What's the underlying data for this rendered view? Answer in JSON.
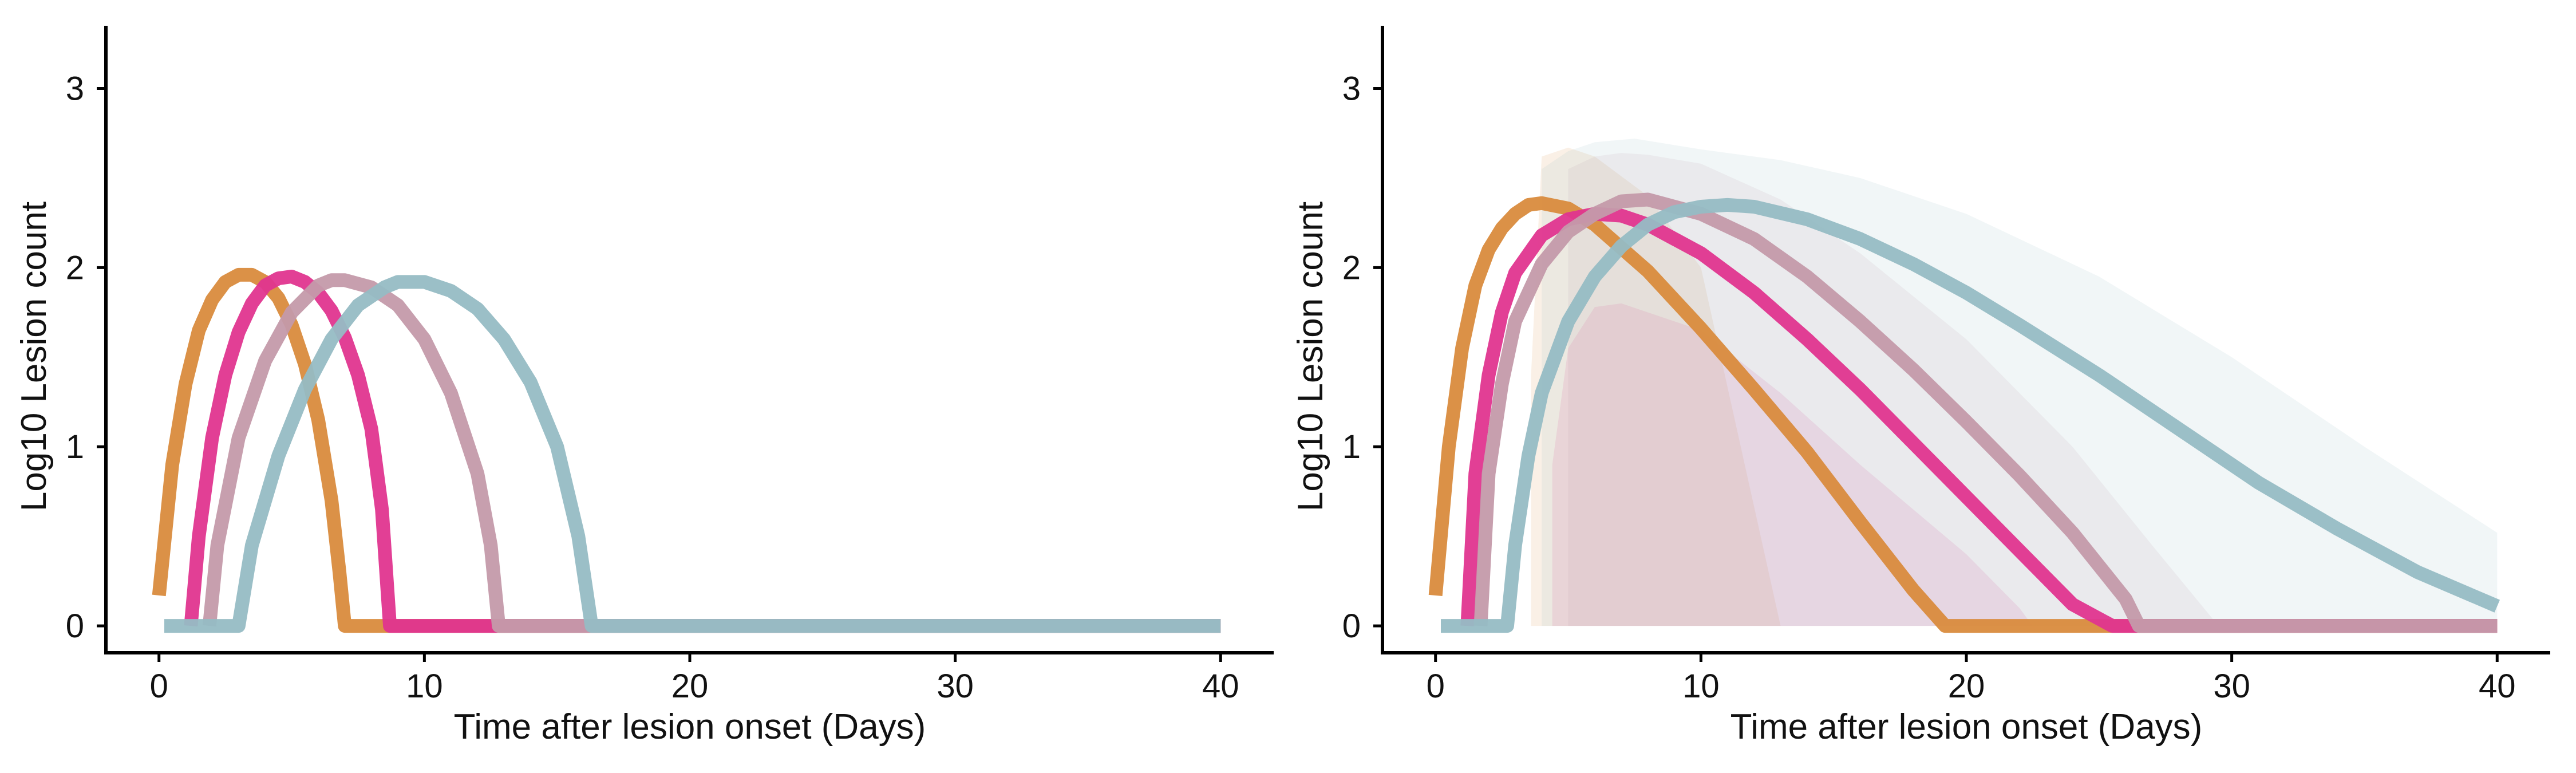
{
  "chart_data": [
    {
      "type": "line",
      "panel": "left",
      "xlabel": "Time after lesion onset (Days)",
      "ylabel": "Log10 Lesion count",
      "xlim": [
        -2,
        42
      ],
      "ylim": [
        -0.15,
        3.35
      ],
      "xticks": [
        "0",
        "10",
        "20",
        "30",
        "40"
      ],
      "yticks": [
        "0",
        "1",
        "2",
        "3"
      ],
      "legend": "none",
      "grid": false,
      "series": [
        {
          "color": "#D98B3D",
          "bands": [],
          "points": [
            [
              0,
              0.17
            ],
            [
              0.5,
              0.9
            ],
            [
              1,
              1.35
            ],
            [
              1.5,
              1.65
            ],
            [
              2,
              1.82
            ],
            [
              2.5,
              1.92
            ],
            [
              3,
              1.96
            ],
            [
              3.5,
              1.96
            ],
            [
              4,
              1.92
            ],
            [
              4.5,
              1.83
            ],
            [
              5,
              1.68
            ],
            [
              5.5,
              1.46
            ],
            [
              6,
              1.15
            ],
            [
              6.5,
              0.7
            ],
            [
              6.8,
              0.3
            ],
            [
              7,
              0
            ],
            [
              40,
              0
            ]
          ]
        },
        {
          "color": "#E0358F",
          "bands": [],
          "points": [
            [
              1.2,
              0
            ],
            [
              1.5,
              0.5
            ],
            [
              2,
              1.05
            ],
            [
              2.5,
              1.4
            ],
            [
              3,
              1.64
            ],
            [
              3.5,
              1.8
            ],
            [
              4,
              1.9
            ],
            [
              4.5,
              1.94
            ],
            [
              5,
              1.95
            ],
            [
              5.5,
              1.92
            ],
            [
              6,
              1.86
            ],
            [
              6.5,
              1.76
            ],
            [
              7,
              1.61
            ],
            [
              7.5,
              1.4
            ],
            [
              8,
              1.1
            ],
            [
              8.4,
              0.65
            ],
            [
              8.7,
              0
            ],
            [
              40,
              0
            ]
          ]
        },
        {
          "color": "#C49AAA",
          "bands": [],
          "points": [
            [
              1.9,
              0
            ],
            [
              2.2,
              0.45
            ],
            [
              3,
              1.05
            ],
            [
              4,
              1.48
            ],
            [
              5,
              1.75
            ],
            [
              6,
              1.9
            ],
            [
              6.5,
              1.93
            ],
            [
              7,
              1.93
            ],
            [
              8,
              1.89
            ],
            [
              9,
              1.79
            ],
            [
              10,
              1.6
            ],
            [
              11,
              1.3
            ],
            [
              12,
              0.85
            ],
            [
              12.5,
              0.45
            ],
            [
              12.8,
              0
            ],
            [
              40,
              0
            ]
          ]
        },
        {
          "color": "#96BCC4",
          "bands": [],
          "points": [
            [
              0.2,
              0
            ],
            [
              3,
              0
            ],
            [
              3.5,
              0.45
            ],
            [
              4.5,
              0.95
            ],
            [
              5.5,
              1.32
            ],
            [
              6.5,
              1.6
            ],
            [
              7.5,
              1.79
            ],
            [
              8.5,
              1.89
            ],
            [
              9,
              1.92
            ],
            [
              10,
              1.92
            ],
            [
              11,
              1.87
            ],
            [
              12,
              1.77
            ],
            [
              13,
              1.6
            ],
            [
              14,
              1.36
            ],
            [
              15,
              1.0
            ],
            [
              15.8,
              0.5
            ],
            [
              16.3,
              0
            ],
            [
              40,
              0
            ]
          ]
        }
      ]
    },
    {
      "type": "line",
      "panel": "right",
      "xlabel": "Time after lesion onset (Days)",
      "ylabel": "Log10 Lesion count",
      "xlim": [
        -2,
        42
      ],
      "ylim": [
        -0.15,
        3.35
      ],
      "xticks": [
        "0",
        "10",
        "20",
        "30",
        "40"
      ],
      "yticks": [
        "0",
        "1",
        "2",
        "3"
      ],
      "legend": "none",
      "grid": false,
      "series": [
        {
          "color": "#D98B3D",
          "bands": [
            {
              "x": [
                3.6,
                4,
                5,
                6,
                8,
                10,
                13
              ],
              "upper": [
                1.4,
                2.62,
                2.67,
                2.62,
                2.4,
                2.0,
                0
              ],
              "lower": [
                0,
                0,
                0,
                0,
                0,
                0,
                0
              ]
            }
          ],
          "points": [
            [
              0,
              0.17
            ],
            [
              0.5,
              1.0
            ],
            [
              1,
              1.55
            ],
            [
              1.5,
              1.9
            ],
            [
              2,
              2.1
            ],
            [
              2.5,
              2.22
            ],
            [
              3,
              2.3
            ],
            [
              3.5,
              2.35
            ],
            [
              4,
              2.36
            ],
            [
              5,
              2.33
            ],
            [
              6,
              2.24
            ],
            [
              8,
              1.98
            ],
            [
              10,
              1.66
            ],
            [
              12,
              1.32
            ],
            [
              14,
              0.97
            ],
            [
              16,
              0.58
            ],
            [
              18,
              0.2
            ],
            [
              19.2,
              0
            ],
            [
              40,
              0
            ]
          ]
        },
        {
          "color": "#E0358F",
          "bands": [
            {
              "x": [
                4.4,
                5,
                6,
                7,
                10,
                13,
                16,
                20,
                22,
                22.5
              ],
              "upper": [
                0.9,
                1.55,
                1.78,
                1.8,
                1.65,
                1.3,
                0.9,
                0.4,
                0.1,
                0
              ],
              "lower": [
                0,
                0,
                0,
                0,
                0,
                0,
                0,
                0,
                0,
                0
              ]
            }
          ],
          "points": [
            [
              1.2,
              0
            ],
            [
              1.5,
              0.85
            ],
            [
              2,
              1.4
            ],
            [
              2.5,
              1.75
            ],
            [
              3,
              1.97
            ],
            [
              4,
              2.18
            ],
            [
              5,
              2.27
            ],
            [
              6,
              2.3
            ],
            [
              7,
              2.29
            ],
            [
              8,
              2.24
            ],
            [
              10,
              2.08
            ],
            [
              12,
              1.86
            ],
            [
              14,
              1.6
            ],
            [
              16,
              1.32
            ],
            [
              18,
              1.02
            ],
            [
              20,
              0.72
            ],
            [
              22,
              0.42
            ],
            [
              24,
              0.12
            ],
            [
              25.5,
              0
            ],
            [
              40,
              0
            ]
          ]
        },
        {
          "color": "#C49AAA",
          "bands": [
            {
              "x": [
                5,
                6,
                7,
                8,
                10,
                13,
                16,
                20,
                24,
                27,
                29.5
              ],
              "upper": [
                2.55,
                2.62,
                2.64,
                2.63,
                2.58,
                2.38,
                2.08,
                1.6,
                1.0,
                0.45,
                0
              ],
              "lower": [
                0,
                0,
                0,
                0,
                0,
                0,
                0,
                0,
                0,
                0,
                0
              ]
            }
          ],
          "points": [
            [
              1.7,
              0
            ],
            [
              2,
              0.85
            ],
            [
              2.5,
              1.35
            ],
            [
              3,
              1.7
            ],
            [
              4,
              2.02
            ],
            [
              5,
              2.2
            ],
            [
              6,
              2.3
            ],
            [
              7,
              2.37
            ],
            [
              8,
              2.38
            ],
            [
              10,
              2.3
            ],
            [
              12,
              2.16
            ],
            [
              14,
              1.95
            ],
            [
              16,
              1.7
            ],
            [
              18,
              1.43
            ],
            [
              20,
              1.14
            ],
            [
              22,
              0.84
            ],
            [
              24,
              0.52
            ],
            [
              26,
              0.15
            ],
            [
              26.5,
              0
            ],
            [
              40,
              0
            ]
          ]
        },
        {
          "color": "#96BCC4",
          "bands": [
            {
              "x": [
                4,
                5,
                6,
                7.5,
                10,
                13,
                16,
                20,
                25,
                30,
                35,
                40
              ],
              "upper": [
                2.55,
                2.65,
                2.7,
                2.72,
                2.66,
                2.6,
                2.5,
                2.3,
                1.95,
                1.5,
                1.0,
                0.52
              ],
              "lower": [
                0,
                0,
                0,
                0,
                0,
                0,
                0,
                0,
                0,
                0,
                0,
                0
              ]
            }
          ],
          "points": [
            [
              0.2,
              0
            ],
            [
              2.7,
              0
            ],
            [
              3,
              0.45
            ],
            [
              3.5,
              0.95
            ],
            [
              4,
              1.3
            ],
            [
              5,
              1.7
            ],
            [
              6,
              1.95
            ],
            [
              7,
              2.12
            ],
            [
              8,
              2.24
            ],
            [
              9,
              2.31
            ],
            [
              10,
              2.34
            ],
            [
              11,
              2.35
            ],
            [
              12,
              2.34
            ],
            [
              14,
              2.27
            ],
            [
              16,
              2.16
            ],
            [
              18,
              2.02
            ],
            [
              20,
              1.86
            ],
            [
              22,
              1.68
            ],
            [
              25,
              1.4
            ],
            [
              28,
              1.1
            ],
            [
              31,
              0.8
            ],
            [
              34,
              0.54
            ],
            [
              37,
              0.3
            ],
            [
              40,
              0.11
            ]
          ]
        }
      ]
    }
  ]
}
